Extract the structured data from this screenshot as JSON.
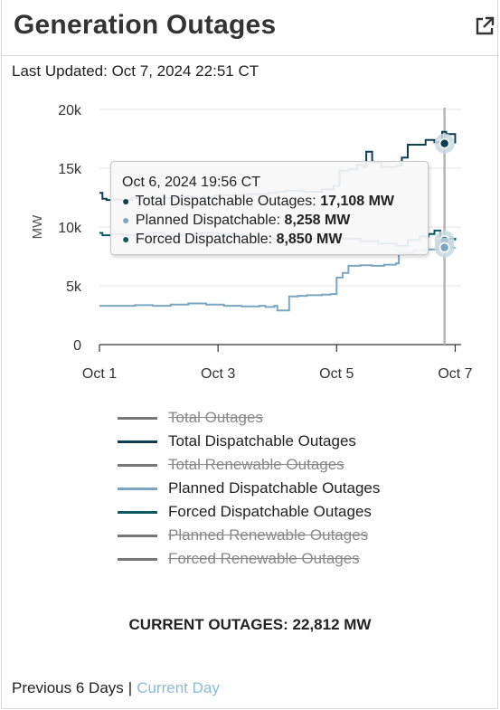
{
  "header": {
    "title": "Generation Outages",
    "external_icon": "external-link-icon"
  },
  "last_updated": "Last Updated: Oct 7, 2024 22:51 CT",
  "chart_data": {
    "type": "line",
    "title": "Generation Outages",
    "ylabel": "MW",
    "xlabel": "",
    "ylim": [
      0,
      20000
    ],
    "yticks": [
      0,
      5000,
      10000,
      15000,
      20000
    ],
    "ytick_labels": [
      "0",
      "5k",
      "10k",
      "15k",
      "20k"
    ],
    "xlim": [
      1,
      7.1
    ],
    "xticks": [
      1,
      3,
      5,
      7
    ],
    "xtick_labels": [
      "Oct 1",
      "Oct 3",
      "Oct 5",
      "Oct 7"
    ],
    "grid": true,
    "legend_position": "bottom",
    "colors": {
      "total_dispatchable": "#0f3d52",
      "planned_dispatchable": "#7aa6c0",
      "forced_dispatchable": "#0d5a63",
      "hidden": "#777777"
    },
    "series": [
      {
        "name": "Total Outages",
        "visible": false,
        "x": [],
        "y": []
      },
      {
        "name": "Total Dispatchable Outages",
        "visible": true,
        "color": "#0f3d52",
        "x": [
          1.0,
          1.05,
          1.12,
          1.25,
          1.35,
          1.55,
          1.7,
          1.85,
          2.0,
          2.3,
          2.6,
          2.95,
          3.4,
          3.85,
          4.0,
          4.15,
          4.45,
          4.75,
          4.95,
          5.05,
          5.2,
          5.35,
          5.45,
          5.5,
          5.6,
          5.75,
          6.0,
          6.1,
          6.2,
          6.5,
          6.65,
          6.78,
          6.85,
          7.0
        ],
        "y": [
          12900,
          12400,
          12300,
          12350,
          12300,
          12450,
          12400,
          12500,
          12450,
          12600,
          12500,
          12700,
          12800,
          12900,
          13000,
          13100,
          13000,
          13200,
          13500,
          14800,
          14900,
          15300,
          15100,
          16400,
          15500,
          15100,
          15200,
          15900,
          17000,
          17400,
          17200,
          18100,
          17900,
          17108
        ]
      },
      {
        "name": "Total Renewable Outages",
        "visible": false,
        "x": [],
        "y": []
      },
      {
        "name": "Planned Dispatchable Outages",
        "visible": true,
        "color": "#7aa6c0",
        "x": [
          1.0,
          1.15,
          1.3,
          1.6,
          1.9,
          2.2,
          2.5,
          2.8,
          3.1,
          3.4,
          3.7,
          3.8,
          3.95,
          4.0,
          4.2,
          4.35,
          4.5,
          4.75,
          4.9,
          4.97,
          5.0,
          5.1,
          5.2,
          5.4,
          5.6,
          5.8,
          6.0,
          6.05,
          6.3,
          6.5,
          6.7,
          6.85,
          7.0
        ],
        "y": [
          3300,
          3300,
          3300,
          3350,
          3300,
          3400,
          3500,
          3400,
          3300,
          3250,
          3300,
          3200,
          3300,
          2900,
          4100,
          4150,
          4200,
          4250,
          4300,
          4300,
          5700,
          6100,
          6700,
          6750,
          6700,
          6800,
          6900,
          7800,
          8000,
          8100,
          8200,
          8250,
          8258
        ]
      },
      {
        "name": "Forced Dispatchable Outages",
        "visible": true,
        "color": "#0d5a63",
        "x": [
          1.0,
          1.05,
          1.2,
          1.4,
          1.6,
          1.85,
          2.1,
          2.4,
          2.7,
          3.0,
          3.3,
          3.6,
          3.9,
          4.2,
          4.5,
          4.8,
          5.1,
          5.4,
          5.7,
          6.0,
          6.2,
          6.4,
          6.55,
          6.65,
          6.75,
          6.85,
          7.0
        ],
        "y": [
          9500,
          9300,
          9400,
          9300,
          9400,
          9500,
          9300,
          9400,
          9500,
          9400,
          9300,
          9200,
          9000,
          8900,
          9000,
          9100,
          9000,
          8800,
          8600,
          8400,
          8900,
          9200,
          9400,
          9700,
          9100,
          9000,
          8850
        ]
      },
      {
        "name": "Planned Renewable Outages",
        "visible": false,
        "x": [],
        "y": []
      },
      {
        "name": "Forced Renewable Outages",
        "visible": false,
        "x": [],
        "y": []
      }
    ],
    "crosshair_x": 6.82,
    "tooltip": {
      "date": "Oct 6, 2024 19:56 CT",
      "rows": [
        {
          "label": "Total Dispatchable Outages:",
          "value": "17,108 MW",
          "color": "#0f3d52"
        },
        {
          "label": "Planned Dispatchable:",
          "value": "8,258 MW",
          "color": "#7aa6c0"
        },
        {
          "label": "Forced Dispatchable:",
          "value": "8,850 MW",
          "color": "#0d5a63"
        }
      ]
    }
  },
  "legend": [
    {
      "label": "Total Outages",
      "color": "#777777",
      "hidden": true
    },
    {
      "label": "Total Dispatchable Outages",
      "color": "#0f3d52",
      "hidden": false
    },
    {
      "label": "Total Renewable Outages",
      "color": "#777777",
      "hidden": true
    },
    {
      "label": "Planned Dispatchable Outages",
      "color": "#7aa6c0",
      "hidden": false
    },
    {
      "label": "Forced Dispatchable Outages",
      "color": "#0d5a63",
      "hidden": false
    },
    {
      "label": "Planned Renewable Outages",
      "color": "#777777",
      "hidden": true
    },
    {
      "label": "Forced Renewable Outages",
      "color": "#777777",
      "hidden": true
    }
  ],
  "current_outages": "CURRENT OUTAGES: 22,812 MW",
  "footer": {
    "previous_label": "Previous 6 Days",
    "separator": "|",
    "current_label": "Current Day"
  }
}
